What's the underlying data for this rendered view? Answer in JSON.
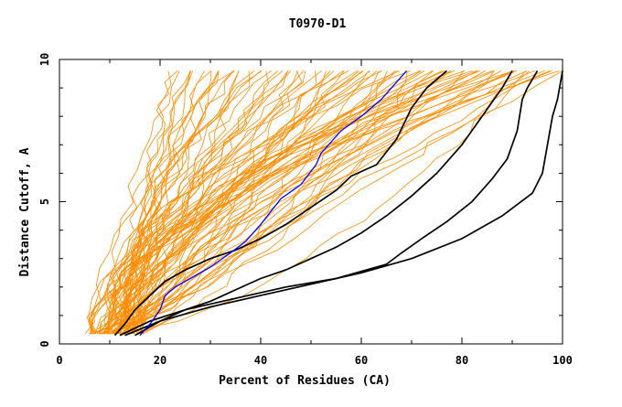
{
  "chart_data": {
    "type": "line",
    "title": "T0970-D1",
    "xlabel": "Percent of Residues (CA)",
    "ylabel": "Distance Cutoff, A",
    "xlim": [
      0,
      100
    ],
    "ylim": [
      0,
      10
    ],
    "x_ticks": [
      "0",
      "20",
      "40",
      "60",
      "80",
      "100"
    ],
    "y_ticks": [
      "0",
      "5",
      "10"
    ],
    "grid": false,
    "colors": {
      "background_models": "#ff8c00",
      "highlight_blue": "#0000ff",
      "highlight_black": "#000000"
    },
    "background_series_count": 90,
    "series": [
      {
        "color": "#0000ff",
        "x": [
          16,
          18,
          20,
          21,
          23,
          26,
          30,
          34,
          37,
          40,
          44,
          48,
          51,
          52,
          56,
          60,
          64,
          66,
          69
        ],
        "y": [
          0.3,
          0.7,
          1.2,
          1.7,
          2.0,
          2.3,
          2.7,
          3.2,
          3.6,
          4.2,
          5.1,
          5.6,
          6.3,
          6.7,
          7.5,
          8.0,
          8.6,
          9.0,
          9.6
        ]
      },
      {
        "color": "#000000",
        "x": [
          11,
          13,
          15,
          18,
          21,
          25,
          30,
          35,
          40,
          45,
          50,
          55,
          58,
          63,
          67,
          70,
          73,
          77
        ],
        "y": [
          0.3,
          0.7,
          1.2,
          1.7,
          2.2,
          2.6,
          3.0,
          3.3,
          3.7,
          4.2,
          4.8,
          5.4,
          5.9,
          6.3,
          7.2,
          8.3,
          9.0,
          9.6
        ]
      },
      {
        "color": "#000000",
        "x": [
          15,
          20,
          25,
          30,
          35,
          40,
          45,
          50,
          55,
          60,
          65,
          70,
          75,
          80,
          84,
          88,
          90
        ],
        "y": [
          0.3,
          0.8,
          1.2,
          1.5,
          1.9,
          2.3,
          2.6,
          3.0,
          3.4,
          3.9,
          4.5,
          5.2,
          6.0,
          7.0,
          8.0,
          9.0,
          9.6
        ]
      },
      {
        "color": "#000000",
        "x": [
          12,
          18,
          25,
          35,
          45,
          55,
          65,
          68,
          72,
          77,
          82,
          86,
          89,
          91,
          92,
          93,
          95
        ],
        "y": [
          0.3,
          0.8,
          1.2,
          1.6,
          2.0,
          2.3,
          2.8,
          3.2,
          3.7,
          4.3,
          5.0,
          5.8,
          6.5,
          7.5,
          8.6,
          9.0,
          9.6
        ]
      },
      {
        "color": "#000000",
        "x": [
          13,
          20,
          30,
          40,
          50,
          60,
          70,
          80,
          88,
          94,
          96,
          97,
          98,
          99,
          100
        ],
        "y": [
          0.3,
          0.8,
          1.3,
          1.7,
          2.1,
          2.5,
          3.0,
          3.7,
          4.5,
          5.3,
          6.0,
          7.0,
          8.0,
          8.6,
          9.6
        ]
      }
    ]
  }
}
